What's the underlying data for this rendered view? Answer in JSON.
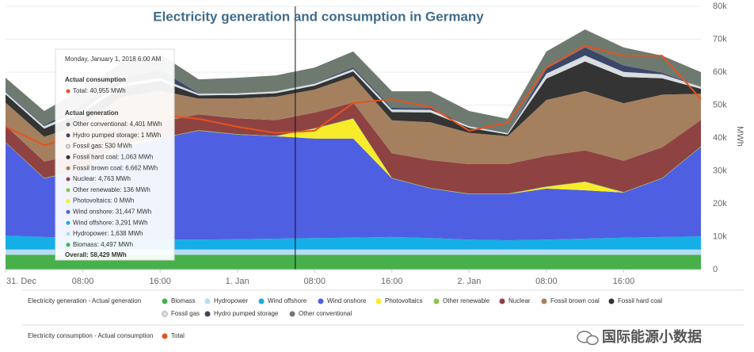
{
  "chart_data": {
    "type": "area",
    "stacked": true,
    "title": "Electricity generation and consumption in Germany",
    "y_label": "MWh",
    "x": [
      0,
      4,
      8,
      12,
      16,
      20,
      24,
      28,
      32,
      36,
      40,
      44,
      48,
      52,
      56,
      60,
      64,
      68,
      72
    ],
    "xlim": [
      0,
      72
    ],
    "xticks": [
      {
        "value": 0,
        "label": "31. Dec"
      },
      {
        "value": 8,
        "label": "08:00"
      },
      {
        "value": 16,
        "label": "16:00"
      },
      {
        "value": 24,
        "label": "1. Jan"
      },
      {
        "value": 32,
        "label": "08:00"
      },
      {
        "value": 40,
        "label": "16:00"
      },
      {
        "value": 48,
        "label": "2. Jan"
      },
      {
        "value": 56,
        "label": "08:00"
      },
      {
        "value": 64,
        "label": "16:00"
      }
    ],
    "ylim": [
      0,
      80000
    ],
    "yticks": [
      0,
      {
        "value": 10000,
        "label": "10k"
      },
      {
        "value": 20000,
        "label": "20k"
      },
      {
        "value": 30000,
        "label": "30k"
      },
      {
        "value": 40000,
        "label": "40k"
      },
      {
        "value": 50000,
        "label": "50k"
      },
      {
        "value": 60000,
        "label": "60k"
      },
      {
        "value": 70000,
        "label": "70k"
      },
      {
        "value": 80000,
        "label": "80k"
      }
    ],
    "grid": true,
    "crosshair_x": 30,
    "generation_legend_title": "Electricity generation - Actual generation",
    "consumption_legend_title": "Electricity consumption - Actual consumption",
    "series": [
      {
        "name": "Biomass",
        "color": "#47b04b",
        "values": [
          4500,
          4500,
          4500,
          4500,
          4500,
          4500,
          4500,
          4500,
          4500,
          4500,
          4500,
          4500,
          4500,
          4500,
          4500,
          4500,
          4500,
          4500,
          4500
        ]
      },
      {
        "name": "Hydropower",
        "color": "#b7dcf2",
        "values": [
          1600,
          1600,
          1600,
          1600,
          1600,
          1600,
          1600,
          1600,
          1600,
          1600,
          1600,
          1600,
          1600,
          1600,
          1600,
          1600,
          1600,
          1600,
          1600
        ]
      },
      {
        "name": "Wind offshore",
        "color": "#16aee6",
        "values": [
          4200,
          3800,
          3500,
          3200,
          3000,
          3000,
          3100,
          3300,
          3500,
          3600,
          3800,
          3500,
          3000,
          2800,
          3000,
          3300,
          3600,
          3800,
          4000
        ]
      },
      {
        "name": "Wind onshore",
        "color": "#4f5fe2",
        "values": [
          28300,
          17800,
          20500,
          28000,
          30700,
          33100,
          31800,
          31100,
          30200,
          30100,
          17800,
          15000,
          13800,
          14000,
          15500,
          14700,
          13700,
          17800,
          27200
        ]
      },
      {
        "name": "Photovoltaics",
        "color": "#f7ec2a",
        "values": [
          0,
          0,
          0,
          1000,
          0,
          0,
          0,
          0,
          3000,
          6000,
          0,
          0,
          0,
          0,
          500,
          2500,
          0,
          0,
          0
        ]
      },
      {
        "name": "Other renewable",
        "color": "#8cc34b",
        "values": [
          150,
          150,
          150,
          150,
          150,
          150,
          150,
          150,
          150,
          150,
          150,
          150,
          150,
          150,
          150,
          150,
          150,
          150,
          150
        ]
      },
      {
        "name": "Nuclear",
        "color": "#8f4242",
        "values": [
          5000,
          5000,
          5000,
          5000,
          4900,
          4800,
          4800,
          4770,
          4750,
          4800,
          7500,
          8500,
          9000,
          9000,
          9300,
          9500,
          9500,
          9300,
          8000
        ]
      },
      {
        "name": "Fossil brown coal",
        "color": "#a4805f",
        "values": [
          7000,
          7500,
          9000,
          9000,
          9500,
          4800,
          6000,
          7100,
          7000,
          8000,
          10000,
          11500,
          9500,
          8500,
          17000,
          18000,
          17500,
          16000,
          8000
        ]
      },
      {
        "name": "Fossil hard coal",
        "color": "#343434",
        "values": [
          2500,
          2500,
          3500,
          3000,
          3000,
          1000,
          1100,
          1100,
          1200,
          1500,
          2500,
          3000,
          1500,
          500,
          6500,
          9000,
          8000,
          5000,
          1500
        ]
      },
      {
        "name": "Fossil gas",
        "color": "#d9dde0",
        "values": [
          600,
          700,
          1000,
          1000,
          900,
          500,
          500,
          530,
          600,
          700,
          800,
          800,
          500,
          400,
          1500,
          1800,
          1500,
          1200,
          600
        ]
      },
      {
        "name": "Hydro pumped storage",
        "color": "#3b4768",
        "values": [
          200,
          300,
          1500,
          1500,
          2500,
          100,
          50,
          0,
          200,
          500,
          500,
          500,
          100,
          0,
          1500,
          2500,
          2000,
          500,
          0
        ]
      },
      {
        "name": "Other conventional",
        "color": "#6e7a70",
        "values": [
          4250,
          4350,
          4650,
          4750,
          4750,
          4250,
          4700,
          4850,
          4700,
          4850,
          5050,
          5150,
          4550,
          4350,
          5250,
          5450,
          5450,
          5150,
          4450
        ]
      }
    ],
    "line_series": [
      {
        "name": "Total",
        "color": "#e4531f",
        "values": [
          43400,
          37800,
          41000,
          45000,
          47000,
          45800,
          43400,
          41500,
          42200,
          50600,
          51800,
          49400,
          42200,
          44600,
          61400,
          68000,
          65000,
          65000,
          51800
        ]
      }
    ]
  },
  "tooltip": {
    "date": "Monday, January 1, 2018 6:00 AM",
    "consumption_heading": "Actual consumption",
    "consumption_items": [
      {
        "text": "Total: 40,955 MWh",
        "color": "#e4531f"
      }
    ],
    "generation_heading": "Actual generation",
    "generation_items": [
      {
        "text": "Other conventional: 4,401 MWh",
        "color": "#6e7a70"
      },
      {
        "text": "Hydro pumped storage: 1 MWh",
        "color": "#3b4768"
      },
      {
        "text": "Fossil gas: 530 MWh",
        "color": "#d9dde0"
      },
      {
        "text": "Fossil hard coal: 1,063 MWh",
        "color": "#343434"
      },
      {
        "text": "Fossil brown coal: 6,662 MWh",
        "color": "#a4805f"
      },
      {
        "text": "Nuclear: 4,763 MWh",
        "color": "#8f4242"
      },
      {
        "text": "Other renewable: 136 MWh",
        "color": "#8cc34b"
      },
      {
        "text": "Photovoltaics: 0 MWh",
        "color": "#f7ec2a"
      },
      {
        "text": "Wind onshore: 31,447 MWh",
        "color": "#4f5fe2"
      },
      {
        "text": "Wind offshore: 3,291 MWh",
        "color": "#16aee6"
      },
      {
        "text": "Hydropower: 1,638 MWh",
        "color": "#b7dcf2"
      },
      {
        "text": "Biomass: 4,497 MWh",
        "color": "#47b04b"
      }
    ],
    "overall": "Overall: 58,429 MWh"
  },
  "watermark": "国际能源小数据"
}
